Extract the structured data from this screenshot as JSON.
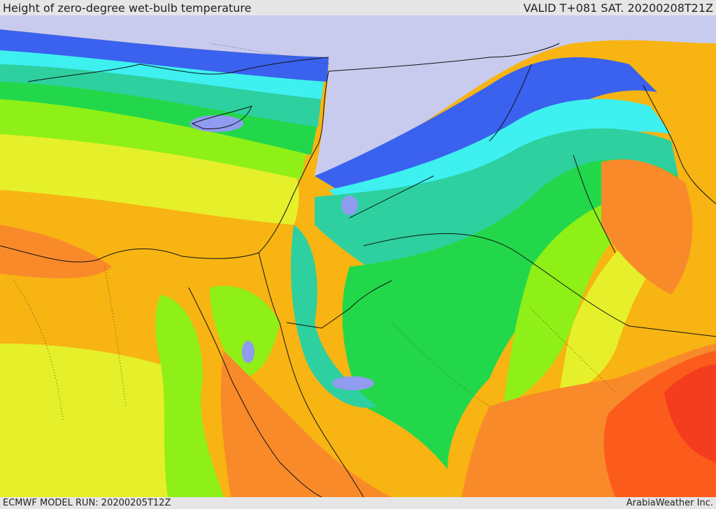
{
  "header": {
    "title": "Height of zero-degree wet-bulb temperature",
    "valid": "VALID T+081 SAT. 20200208T21Z"
  },
  "footer": {
    "model_run": "ECMWF MODEL RUN: 20200205T12Z",
    "credit": "ArabiaWeather Inc."
  },
  "palette": {
    "below_ground": "#c8cbee",
    "band_1": "#8f9cf0",
    "band_2": "#3a62ee",
    "band_3": "#2fb3f5",
    "band_4": "#3ef0f0",
    "band_5": "#2ed0a0",
    "band_6": "#22d84a",
    "band_7": "#8ef017",
    "band_8": "#e6f02a",
    "band_9": "#f7b412",
    "band_10": "#f98a2a",
    "band_11": "#fb5c1c",
    "band_12": "#f43c1e",
    "borders": "#111111"
  }
}
